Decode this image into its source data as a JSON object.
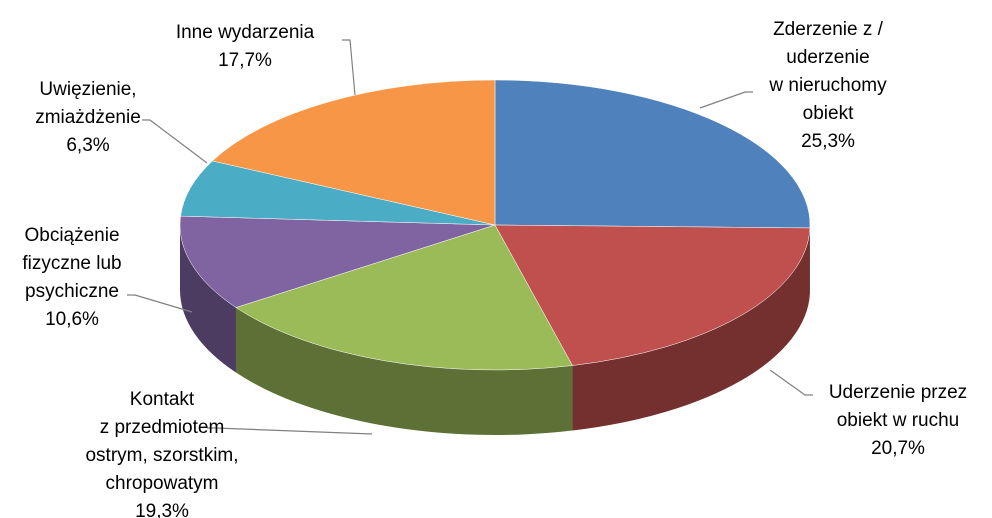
{
  "chart_data": {
    "type": "pie",
    "categories": [
      "Zderzenie z /\nuderzenie\nw nieruchomy\nobiekt",
      "Uderzenie przez\nobiekt w ruchu",
      "Kontakt\nz przedmiotem\nostrym, szorstkim,\nchropowatym",
      "Obciążenie\nfizyczne lub\npsychiczne",
      "Uwięzienie,\nzmiażdżenie",
      "Inne wydarzenia"
    ],
    "values": [
      25.3,
      20.7,
      19.3,
      10.6,
      6.3,
      17.7
    ],
    "value_labels": [
      "25,3%",
      "20,7%",
      "19,3%",
      "10,6%",
      "6,3%",
      "17,7%"
    ],
    "colors": [
      "#4f81bd",
      "#c0504d",
      "#9bbb59",
      "#8064a2",
      "#4bacc6",
      "#f79646"
    ]
  }
}
